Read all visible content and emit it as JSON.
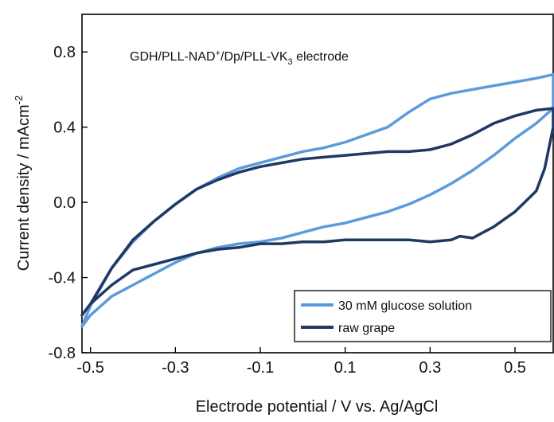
{
  "chart_data": {
    "type": "line",
    "title": "",
    "annotation": {
      "prefix": "GDH/PLL-NAD",
      "sup1": "+",
      "middle": "/Dp/PLL-VK",
      "sub": "3",
      "suffix": " electrode"
    },
    "xlabel": "Electrode potential / V vs. Ag/AgCl",
    "ylabel": {
      "text": "Current density / mAcm",
      "sup": "-2"
    },
    "xlim": [
      -0.52,
      0.59
    ],
    "ylim": [
      -0.8,
      1.0
    ],
    "x_ticks": [
      -0.5,
      -0.3,
      -0.1,
      0.1,
      0.3,
      0.5
    ],
    "x_tick_labels": [
      "-0.5",
      "-0.3",
      "-0.1",
      "0.1",
      "0.3",
      "0.5"
    ],
    "y_ticks": [
      -0.8,
      -0.4,
      0.0,
      0.4,
      0.8
    ],
    "y_tick_labels": [
      "-0.8",
      "-0.4",
      "0.0",
      "0.4",
      "0.8"
    ],
    "grid": false,
    "legend_position": "bottom-right",
    "series": [
      {
        "name": "30 mM glucose solution",
        "color": "#5b9bdb",
        "x": [
          -0.52,
          -0.5,
          -0.45,
          -0.4,
          -0.35,
          -0.3,
          -0.25,
          -0.2,
          -0.15,
          -0.1,
          -0.05,
          0.0,
          0.05,
          0.1,
          0.15,
          0.2,
          0.25,
          0.3,
          0.35,
          0.4,
          0.45,
          0.5,
          0.55,
          0.59,
          0.59,
          0.55,
          0.5,
          0.45,
          0.4,
          0.35,
          0.3,
          0.25,
          0.2,
          0.15,
          0.1,
          0.05,
          0.0,
          -0.05,
          -0.1,
          -0.15,
          -0.2,
          -0.25,
          -0.3,
          -0.35,
          -0.4,
          -0.45,
          -0.5,
          -0.52
        ],
        "y": [
          -0.66,
          -0.55,
          -0.35,
          -0.21,
          -0.1,
          -0.01,
          0.07,
          0.13,
          0.18,
          0.21,
          0.24,
          0.27,
          0.29,
          0.32,
          0.36,
          0.4,
          0.48,
          0.55,
          0.58,
          0.6,
          0.62,
          0.64,
          0.66,
          0.68,
          0.5,
          0.42,
          0.34,
          0.25,
          0.17,
          0.1,
          0.04,
          -0.01,
          -0.05,
          -0.08,
          -0.11,
          -0.13,
          -0.16,
          -0.19,
          -0.21,
          -0.22,
          -0.24,
          -0.27,
          -0.32,
          -0.38,
          -0.44,
          -0.5,
          -0.6,
          -0.66
        ]
      },
      {
        "name": "raw grape",
        "color": "#1f3864",
        "x": [
          -0.52,
          -0.5,
          -0.45,
          -0.4,
          -0.35,
          -0.3,
          -0.25,
          -0.2,
          -0.15,
          -0.1,
          -0.05,
          0.0,
          0.05,
          0.1,
          0.15,
          0.2,
          0.25,
          0.3,
          0.35,
          0.4,
          0.45,
          0.5,
          0.55,
          0.59,
          0.59,
          0.57,
          0.55,
          0.5,
          0.45,
          0.4,
          0.37,
          0.35,
          0.3,
          0.25,
          0.2,
          0.15,
          0.1,
          0.05,
          0.0,
          -0.05,
          -0.1,
          -0.15,
          -0.2,
          -0.25,
          -0.3,
          -0.35,
          -0.4,
          -0.45,
          -0.5,
          -0.52
        ],
        "y": [
          -0.6,
          -0.54,
          -0.35,
          -0.2,
          -0.1,
          -0.01,
          0.07,
          0.12,
          0.16,
          0.19,
          0.21,
          0.23,
          0.24,
          0.25,
          0.26,
          0.27,
          0.27,
          0.28,
          0.31,
          0.36,
          0.42,
          0.46,
          0.49,
          0.5,
          0.4,
          0.18,
          0.06,
          -0.05,
          -0.13,
          -0.19,
          -0.18,
          -0.2,
          -0.21,
          -0.2,
          -0.2,
          -0.2,
          -0.2,
          -0.21,
          -0.21,
          -0.22,
          -0.22,
          -0.24,
          -0.25,
          -0.27,
          -0.3,
          -0.33,
          -0.36,
          -0.44,
          -0.54,
          -0.6
        ]
      }
    ]
  }
}
